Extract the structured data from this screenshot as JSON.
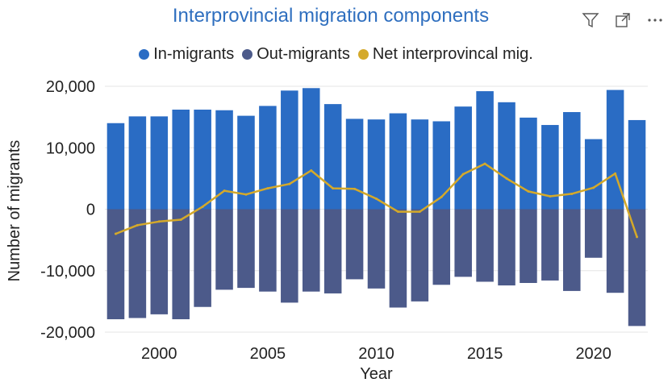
{
  "title": "Interprovincial migration components",
  "toolbar": {
    "icons": [
      "filter-icon",
      "focus-mode-icon",
      "more-options-icon"
    ]
  },
  "colors": {
    "in": "#2a6cc4",
    "out": "#4c5a8a",
    "net": "#d4a92a",
    "grid": "#e6e6e6"
  },
  "chart_data": {
    "type": "bar",
    "xlabel": "Year",
    "ylabel": "Number of migrants",
    "ylim": [
      -20000,
      20000
    ],
    "yticks": [
      -20000,
      -10000,
      0,
      10000,
      20000
    ],
    "ytick_labels": [
      "-20,000",
      "-10,000",
      "0",
      "10,000",
      "20,000"
    ],
    "xticks": [
      2000,
      2005,
      2010,
      2015,
      2020
    ],
    "xtick_labels": [
      "2000",
      "2005",
      "2010",
      "2015",
      "2020"
    ],
    "grid": true,
    "legend_position": "top",
    "x": [
      1998,
      1999,
      2000,
      2001,
      2002,
      2003,
      2004,
      2005,
      2006,
      2007,
      2008,
      2009,
      2010,
      2011,
      2012,
      2013,
      2014,
      2015,
      2016,
      2017,
      2018,
      2019,
      2020,
      2021,
      2022
    ],
    "series": [
      {
        "name": "In-migrants",
        "kind": "bar",
        "values": [
          14000,
          15100,
          15100,
          16200,
          16200,
          16100,
          15200,
          16800,
          19300,
          19700,
          17100,
          14700,
          14600,
          15600,
          14600,
          14300,
          16700,
          19200,
          17400,
          14900,
          13700,
          15800,
          11400,
          19400,
          14500
        ]
      },
      {
        "name": "Out-migrants",
        "kind": "bar",
        "values": [
          -17900,
          -17700,
          -17100,
          -17900,
          -15900,
          -13100,
          -12800,
          -13400,
          -15200,
          -13400,
          -13700,
          -11400,
          -12900,
          -16000,
          -15000,
          -12300,
          -11000,
          -11800,
          -12400,
          -12000,
          -11600,
          -13300,
          -7900,
          -13600,
          -19000
        ]
      },
      {
        "name": "Net interprovincal mig.",
        "kind": "line",
        "values": [
          -4000,
          -2600,
          -2000,
          -1700,
          400,
          3000,
          2400,
          3400,
          4100,
          6300,
          3400,
          3300,
          1700,
          -400,
          -400,
          2000,
          5700,
          7400,
          5000,
          2900,
          2100,
          2500,
          3500,
          5800,
          -4500
        ]
      }
    ]
  }
}
